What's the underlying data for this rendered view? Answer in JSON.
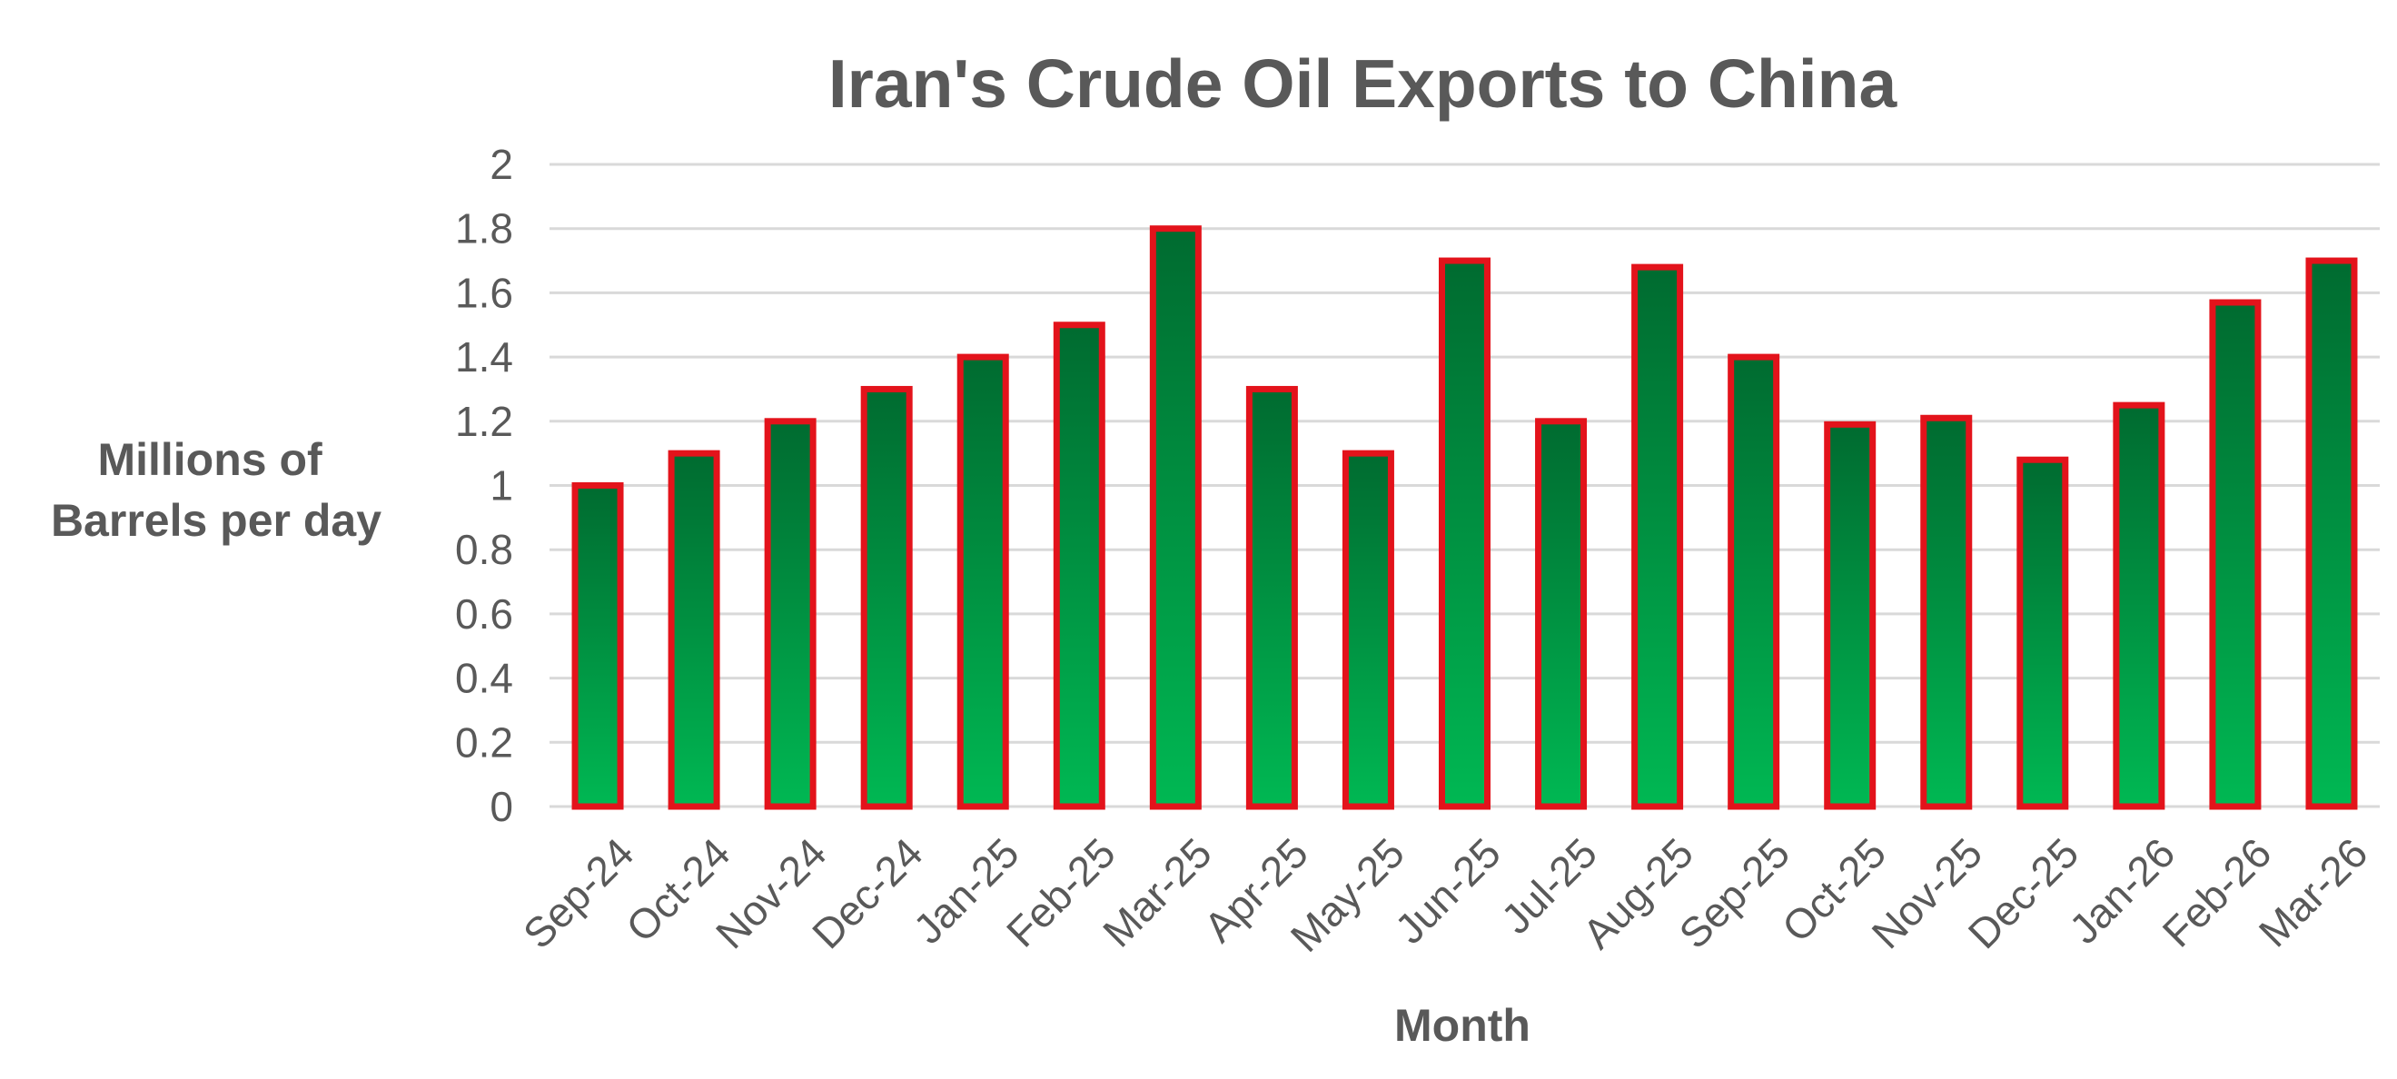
{
  "chart_data": {
    "type": "bar",
    "title": "Iran's Crude Oil Exports to China",
    "xlabel": "Month",
    "ylabel_lines": [
      "Millions of",
      "Barrels per day"
    ],
    "categories": [
      "Sep-24",
      "Oct-24",
      "Nov-24",
      "Dec-24",
      "Jan-25",
      "Feb-25",
      "Mar-25",
      "Apr-25",
      "May-25",
      "Jun-25",
      "Jul-25",
      "Aug-25",
      "Sep-25",
      "Oct-25",
      "Nov-25",
      "Dec-25",
      "Jan-26",
      "Feb-26",
      "Mar-26"
    ],
    "values": [
      1.0,
      1.1,
      1.2,
      1.3,
      1.4,
      1.5,
      1.8,
      1.3,
      1.1,
      1.7,
      1.2,
      1.68,
      1.4,
      1.19,
      1.21,
      1.08,
      1.25,
      1.57,
      1.7
    ],
    "ylim": [
      0,
      2
    ],
    "yticks": [
      "0",
      "0.2",
      "0.4",
      "0.6",
      "0.8",
      "1",
      "1.2",
      "1.4",
      "1.6",
      "1.8",
      "2"
    ],
    "grid": true,
    "legend": "none",
    "colors": {
      "bar_top": "#006b30",
      "bar_bottom": "#00b853",
      "bar_border": "#e3131b",
      "text": "#595959",
      "grid": "#d9d9d9"
    }
  }
}
